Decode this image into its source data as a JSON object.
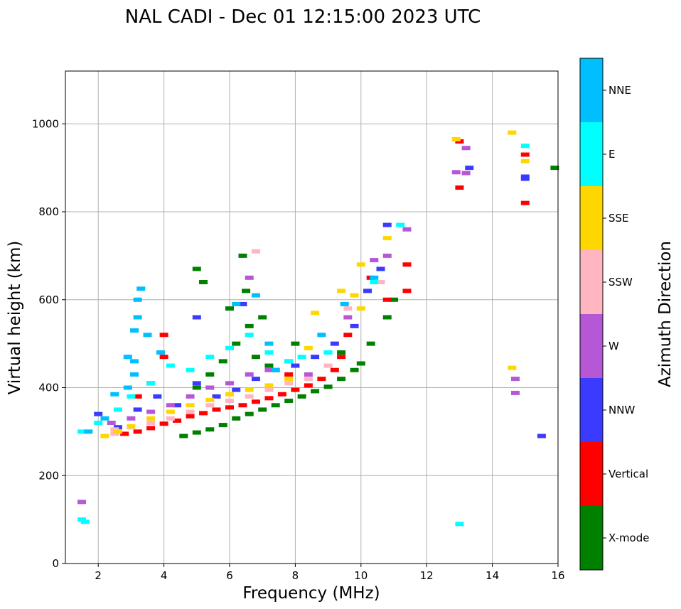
{
  "chart_data": {
    "type": "scatter",
    "title": "NAL CADI - Dec 01 12:15:00 2023 UTC",
    "xlabel": "Frequency (MHz)",
    "ylabel": "Virtual height (km)",
    "xlim": [
      1,
      16
    ],
    "ylim": [
      0,
      1120
    ],
    "xticks": [
      2,
      4,
      6,
      8,
      10,
      12,
      14,
      16
    ],
    "yticks": [
      0,
      200,
      400,
      600,
      800,
      1000
    ],
    "grid": true,
    "colorbar": {
      "label": "Azimuth Direction",
      "categories": [
        {
          "name": "X-mode",
          "color": "#008000"
        },
        {
          "name": "Vertical",
          "color": "#ff0000"
        },
        {
          "name": "NNW",
          "color": "#3b3bff"
        },
        {
          "name": "W",
          "color": "#b657d6"
        },
        {
          "name": "SSW",
          "color": "#ffb6c1"
        },
        {
          "name": "SSE",
          "color": "#ffd700"
        },
        {
          "name": "E",
          "color": "#00ffff"
        },
        {
          "name": "NNE",
          "color": "#00bfff"
        }
      ]
    },
    "series": [
      {
        "name": "X-mode",
        "points": [
          [
            4.6,
            290
          ],
          [
            5.0,
            298
          ],
          [
            5.4,
            305
          ],
          [
            5.8,
            315
          ],
          [
            6.2,
            330
          ],
          [
            6.6,
            340
          ],
          [
            7.0,
            350
          ],
          [
            7.4,
            360
          ],
          [
            7.8,
            370
          ],
          [
            8.2,
            380
          ],
          [
            8.6,
            392
          ],
          [
            9.0,
            402
          ],
          [
            9.4,
            420
          ],
          [
            9.8,
            440
          ],
          [
            10.0,
            455
          ],
          [
            10.3,
            500
          ],
          [
            5.0,
            400
          ],
          [
            5.4,
            430
          ],
          [
            5.8,
            460
          ],
          [
            6.2,
            500
          ],
          [
            6.6,
            540
          ],
          [
            7.0,
            560
          ],
          [
            7.2,
            450
          ],
          [
            6.8,
            470
          ],
          [
            6.0,
            580
          ],
          [
            6.5,
            620
          ],
          [
            5.2,
            640
          ],
          [
            5.0,
            670
          ],
          [
            6.4,
            700
          ],
          [
            8.0,
            500
          ],
          [
            9.4,
            480
          ],
          [
            10.8,
            560
          ],
          [
            11.0,
            600
          ],
          [
            15.9,
            900
          ]
        ]
      },
      {
        "name": "Vertical",
        "points": [
          [
            2.8,
            295
          ],
          [
            3.2,
            300
          ],
          [
            3.6,
            308
          ],
          [
            4.0,
            318
          ],
          [
            4.4,
            325
          ],
          [
            4.8,
            335
          ],
          [
            5.2,
            342
          ],
          [
            5.6,
            350
          ],
          [
            6.0,
            355
          ],
          [
            6.4,
            360
          ],
          [
            6.8,
            368
          ],
          [
            7.2,
            376
          ],
          [
            7.6,
            385
          ],
          [
            8.0,
            395
          ],
          [
            8.4,
            405
          ],
          [
            8.8,
            420
          ],
          [
            9.2,
            440
          ],
          [
            9.4,
            470
          ],
          [
            9.6,
            520
          ],
          [
            10.3,
            650
          ],
          [
            10.8,
            600
          ],
          [
            11.4,
            680
          ],
          [
            11.4,
            620
          ],
          [
            3.2,
            380
          ],
          [
            3.6,
            410
          ],
          [
            4.0,
            470
          ],
          [
            4.0,
            520
          ],
          [
            7.8,
            430
          ],
          [
            13.0,
            855
          ],
          [
            13.0,
            960
          ],
          [
            15.0,
            930
          ],
          [
            15.0,
            820
          ]
        ]
      },
      {
        "name": "NNW",
        "points": [
          [
            2.0,
            340
          ],
          [
            2.6,
            310
          ],
          [
            3.2,
            350
          ],
          [
            3.8,
            380
          ],
          [
            4.4,
            360
          ],
          [
            5.0,
            410
          ],
          [
            5.6,
            380
          ],
          [
            6.2,
            395
          ],
          [
            6.8,
            420
          ],
          [
            7.4,
            440
          ],
          [
            8.0,
            450
          ],
          [
            8.6,
            470
          ],
          [
            9.2,
            500
          ],
          [
            9.8,
            540
          ],
          [
            10.2,
            620
          ],
          [
            10.6,
            670
          ],
          [
            10.8,
            770
          ],
          [
            6.4,
            590
          ],
          [
            5.0,
            560
          ],
          [
            13.3,
            900
          ],
          [
            15.0,
            880
          ],
          [
            15.0,
            875
          ],
          [
            15.5,
            290
          ]
        ]
      },
      {
        "name": "W",
        "points": [
          [
            2.4,
            320
          ],
          [
            3.0,
            330
          ],
          [
            3.6,
            345
          ],
          [
            4.2,
            360
          ],
          [
            4.8,
            380
          ],
          [
            5.4,
            400
          ],
          [
            6.0,
            410
          ],
          [
            6.6,
            430
          ],
          [
            7.2,
            440
          ],
          [
            7.8,
            460
          ],
          [
            8.4,
            430
          ],
          [
            9.0,
            480
          ],
          [
            9.6,
            560
          ],
          [
            10.4,
            690
          ],
          [
            10.8,
            700
          ],
          [
            11.4,
            760
          ],
          [
            6.6,
            650
          ],
          [
            13.2,
            945
          ],
          [
            12.9,
            890
          ],
          [
            13.2,
            888
          ],
          [
            14.7,
            420
          ],
          [
            14.7,
            388
          ],
          [
            1.5,
            140
          ]
        ]
      },
      {
        "name": "SSW",
        "points": [
          [
            2.5,
            295
          ],
          [
            2.5,
            305
          ],
          [
            3.0,
            310
          ],
          [
            3.6,
            320
          ],
          [
            4.2,
            330
          ],
          [
            4.8,
            345
          ],
          [
            5.4,
            360
          ],
          [
            6.0,
            370
          ],
          [
            6.6,
            380
          ],
          [
            7.2,
            395
          ],
          [
            7.8,
            410
          ],
          [
            8.4,
            420
          ],
          [
            9.0,
            450
          ],
          [
            9.6,
            580
          ],
          [
            10.6,
            640
          ],
          [
            6.8,
            710
          ]
        ]
      },
      {
        "name": "SSE",
        "points": [
          [
            2.2,
            290
          ],
          [
            2.6,
            300
          ],
          [
            3.0,
            312
          ],
          [
            3.6,
            330
          ],
          [
            4.2,
            345
          ],
          [
            4.8,
            360
          ],
          [
            5.4,
            372
          ],
          [
            6.0,
            385
          ],
          [
            6.6,
            395
          ],
          [
            7.2,
            405
          ],
          [
            7.8,
            420
          ],
          [
            8.4,
            490
          ],
          [
            8.6,
            570
          ],
          [
            9.4,
            620
          ],
          [
            9.8,
            610
          ],
          [
            10.0,
            580
          ],
          [
            10.0,
            680
          ],
          [
            10.8,
            740
          ],
          [
            12.9,
            965
          ],
          [
            14.6,
            980
          ],
          [
            14.6,
            445
          ],
          [
            15.0,
            915
          ]
        ]
      },
      {
        "name": "E",
        "points": [
          [
            1.5,
            100
          ],
          [
            1.6,
            95
          ],
          [
            1.5,
            300
          ],
          [
            2.0,
            320
          ],
          [
            2.6,
            350
          ],
          [
            3.0,
            380
          ],
          [
            3.6,
            410
          ],
          [
            4.2,
            450
          ],
          [
            4.8,
            440
          ],
          [
            5.4,
            470
          ],
          [
            6.0,
            490
          ],
          [
            6.6,
            520
          ],
          [
            7.2,
            480
          ],
          [
            7.8,
            460
          ],
          [
            8.2,
            470
          ],
          [
            9.0,
            480
          ],
          [
            10.4,
            640
          ],
          [
            11.2,
            770
          ],
          [
            13.0,
            90
          ],
          [
            15.0,
            950
          ]
        ]
      },
      {
        "name": "NNE",
        "points": [
          [
            1.7,
            300
          ],
          [
            2.2,
            330
          ],
          [
            2.5,
            385
          ],
          [
            2.9,
            400
          ],
          [
            3.1,
            430
          ],
          [
            3.1,
            460
          ],
          [
            3.1,
            530
          ],
          [
            3.2,
            560
          ],
          [
            3.2,
            600
          ],
          [
            3.3,
            625
          ],
          [
            3.5,
            520
          ],
          [
            3.9,
            480
          ],
          [
            2.9,
            470
          ],
          [
            6.2,
            590
          ],
          [
            6.8,
            610
          ],
          [
            7.4,
            440
          ],
          [
            7.2,
            500
          ],
          [
            8.8,
            520
          ],
          [
            9.5,
            590
          ],
          [
            10.4,
            650
          ]
        ]
      }
    ]
  }
}
